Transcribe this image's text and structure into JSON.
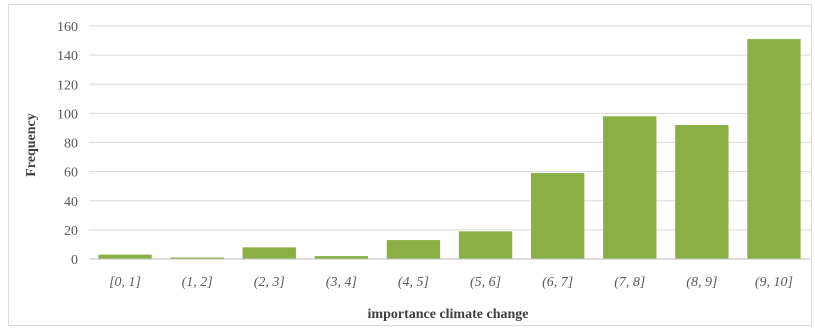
{
  "chart_data": {
    "type": "bar",
    "title": "",
    "xlabel": "importance climate change",
    "ylabel": "Frequency",
    "categories": [
      "[0, 1]",
      "(1, 2]",
      "(2, 3]",
      "(3, 4]",
      "(4, 5]",
      "(5, 6]",
      "(6, 7]",
      "(7, 8]",
      "(8, 9]",
      "(9, 10]"
    ],
    "values": [
      3,
      1,
      8,
      2,
      13,
      19,
      59,
      98,
      92,
      151
    ],
    "yticks": [
      0,
      20,
      40,
      60,
      80,
      100,
      120,
      140,
      160
    ],
    "ylim": [
      0,
      160
    ],
    "grid": true,
    "legend": "none",
    "colors": {
      "bar": "#8aaf45",
      "grid": "#d9d9d9",
      "axis": "#bfbfbf"
    }
  }
}
